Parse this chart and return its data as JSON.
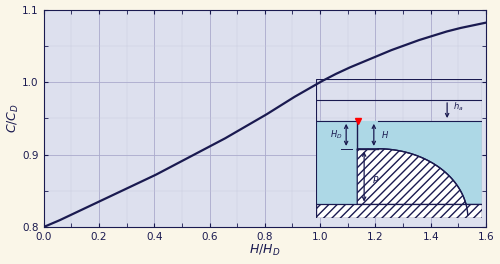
{
  "background_color": "#faf6e8",
  "plot_bg_color": "#dde0ee",
  "grid_major_color": "#aaaacc",
  "grid_minor_color": "#c8c8dd",
  "line_color": "#1a1a50",
  "xlim": [
    0,
    1.6
  ],
  "ylim": [
    0.8,
    1.1
  ],
  "xticks": [
    0,
    0.2,
    0.4,
    0.6,
    0.8,
    1.0,
    1.2,
    1.4,
    1.6
  ],
  "yticks": [
    0.8,
    0.9,
    1.0,
    1.1
  ],
  "xlabel": "$H/H_D$",
  "ylabel": "$C/C_D$",
  "inset_bg_color": "#add8e6",
  "inset_line_color": "#1a1a50",
  "hatch_color": "#555555",
  "curve_x": [
    0.0,
    0.05,
    0.1,
    0.15,
    0.2,
    0.25,
    0.3,
    0.35,
    0.4,
    0.45,
    0.5,
    0.55,
    0.6,
    0.65,
    0.7,
    0.75,
    0.8,
    0.85,
    0.9,
    0.95,
    1.0,
    1.05,
    1.1,
    1.15,
    1.2,
    1.25,
    1.3,
    1.35,
    1.4,
    1.45,
    1.5,
    1.55,
    1.6
  ],
  "curve_y": [
    0.8,
    0.808,
    0.817,
    0.826,
    0.835,
    0.844,
    0.853,
    0.862,
    0.871,
    0.881,
    0.891,
    0.901,
    0.911,
    0.921,
    0.932,
    0.943,
    0.954,
    0.966,
    0.978,
    0.989,
    1.0,
    1.01,
    1.019,
    1.027,
    1.035,
    1.043,
    1.05,
    1.057,
    1.063,
    1.069,
    1.074,
    1.078,
    1.082
  ]
}
